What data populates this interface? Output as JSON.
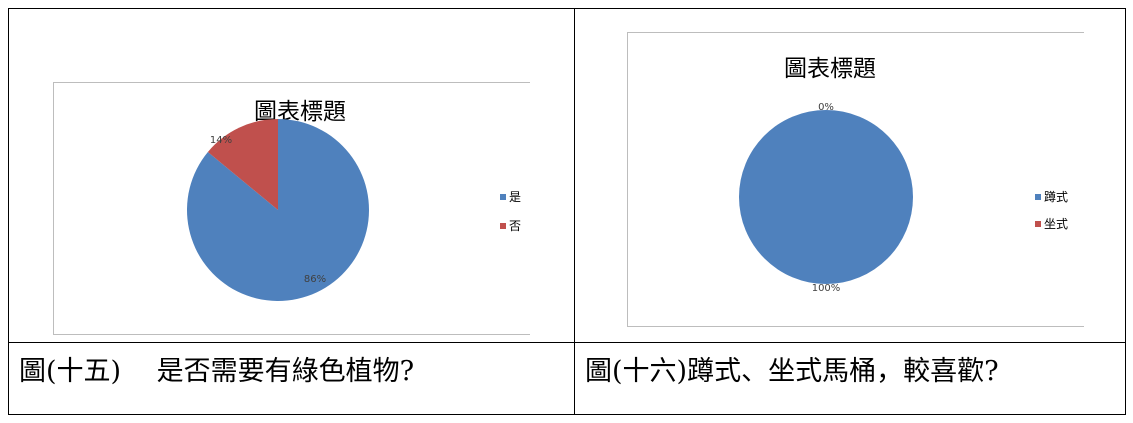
{
  "chart_data": [
    {
      "type": "pie",
      "title": "圖表標題",
      "categories": [
        "是",
        "否"
      ],
      "values": [
        86,
        14
      ],
      "value_labels": [
        "86%",
        "14%"
      ],
      "colors": [
        "#4F81BD",
        "#C0504D"
      ],
      "legend_position": "right"
    },
    {
      "type": "pie",
      "title": "圖表標題",
      "categories": [
        "蹲式",
        "坐式"
      ],
      "values": [
        100,
        0
      ],
      "value_labels": [
        "100%",
        "0%"
      ],
      "colors": [
        "#4F81BD",
        "#C0504D"
      ],
      "legend_position": "right"
    }
  ],
  "captions": [
    "圖(十五)　 是否需要有綠色植物?",
    "圖(十六)蹲式、坐式馬桶，較喜歡?"
  ]
}
